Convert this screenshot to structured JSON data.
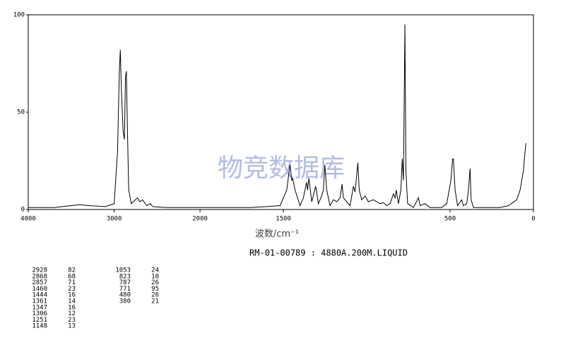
{
  "chart_data": {
    "type": "line",
    "title": "RM-01-00789 : 4880A.200M.LIQUID",
    "x_label": "波数/cm⁻¹",
    "watermark": "物竞数据库",
    "xlim": [
      4000,
      0
    ],
    "xticks": [
      4000,
      3000,
      2000,
      1500,
      500,
      0
    ],
    "ylim": [
      0,
      100
    ],
    "yticks": [
      0,
      50,
      100
    ],
    "grid": false,
    "series": [
      {
        "color": "#000000",
        "x": [
          4000,
          3700,
          3500,
          3400,
          3300,
          3100,
          3000,
          2960,
          2940,
          2928,
          2915,
          2895,
          2880,
          2868,
          2857,
          2845,
          2830,
          2800,
          2730,
          2700,
          2670,
          2620,
          2580,
          2550,
          2400,
          2200,
          2000,
          1700,
          1600,
          1520,
          1480,
          1460,
          1450,
          1444,
          1430,
          1400,
          1380,
          1361,
          1355,
          1347,
          1330,
          1306,
          1290,
          1275,
          1260,
          1251,
          1240,
          1220,
          1200,
          1180,
          1160,
          1148,
          1140,
          1120,
          1100,
          1080,
          1070,
          1053,
          1045,
          1030,
          1010,
          990,
          960,
          940,
          920,
          900,
          880,
          860,
          840,
          830,
          823,
          810,
          795,
          787,
          780,
          771,
          765,
          755,
          720,
          690,
          680,
          650,
          620,
          550,
          520,
          495,
          485,
          480,
          470,
          455,
          430,
          420,
          400,
          390,
          380,
          374,
          360,
          300,
          200,
          150,
          100,
          80,
          60,
          50,
          45
        ],
        "values": [
          1,
          1,
          2,
          2.5,
          2,
          1.5,
          3,
          30,
          70,
          82,
          60,
          40,
          36,
          68,
          71,
          40,
          10,
          3,
          6,
          4,
          5,
          2,
          3,
          1.5,
          1,
          1,
          1,
          1,
          1.5,
          2,
          10,
          23,
          15,
          16,
          10,
          2,
          6,
          14,
          10,
          16,
          4,
          12,
          3,
          6,
          10,
          23,
          10,
          2,
          5,
          4,
          6,
          13,
          6,
          4,
          2,
          12,
          9,
          24,
          10,
          5,
          7,
          4,
          5,
          4,
          3,
          3.5,
          2,
          3,
          8,
          6,
          10,
          3,
          10,
          26,
          15,
          95,
          20,
          3,
          1,
          6,
          2,
          3,
          1,
          1,
          3,
          15,
          26,
          26,
          10,
          2,
          5,
          2,
          3,
          10,
          21,
          5,
          1,
          1,
          1,
          2,
          5,
          10,
          20,
          30,
          34
        ]
      }
    ]
  },
  "peaks": [
    [
      2928,
      82
    ],
    [
      2868,
      68
    ],
    [
      2857,
      71
    ],
    [
      1460,
      23
    ],
    [
      1444,
      16
    ],
    [
      1361,
      14
    ],
    [
      1347,
      16
    ],
    [
      1306,
      12
    ],
    [
      1251,
      23
    ],
    [
      1148,
      13
    ],
    [
      1053,
      24
    ],
    [
      823,
      10
    ],
    [
      787,
      26
    ],
    [
      771,
      95
    ],
    [
      480,
      26
    ],
    [
      380,
      21
    ]
  ]
}
